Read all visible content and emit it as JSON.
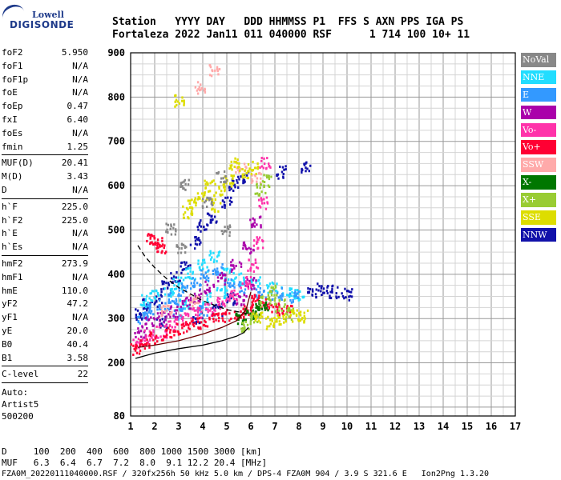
{
  "logo": {
    "line1": "Lowell",
    "line2": "DIGISONDE"
  },
  "header": {
    "line1": "Station   YYYY DAY   DDD HHMMSS P1  FFS S AXN PPS IGA PS",
    "line2": "Fortaleza 2022 Jan11 011 040000 RSF      1 714 100 10+ 11"
  },
  "params": {
    "group1": [
      {
        "k": "foF2",
        "v": "5.950"
      },
      {
        "k": "foF1",
        "v": "N/A"
      },
      {
        "k": "foF1p",
        "v": "N/A"
      },
      {
        "k": "foE",
        "v": "N/A"
      },
      {
        "k": "foEp",
        "v": "0.47"
      },
      {
        "k": "fxI",
        "v": "6.40"
      },
      {
        "k": "foEs",
        "v": "N/A"
      },
      {
        "k": "fmin",
        "v": "1.25"
      }
    ],
    "group2": [
      {
        "k": "MUF(D)",
        "v": "20.41"
      },
      {
        "k": "M(D)",
        "v": "3.43"
      },
      {
        "k": "D",
        "v": "N/A"
      }
    ],
    "group3": [
      {
        "k": "h`F",
        "v": "225.0"
      },
      {
        "k": "h`F2",
        "v": "225.0"
      },
      {
        "k": "h`E",
        "v": "N/A"
      },
      {
        "k": "h`Es",
        "v": "N/A"
      }
    ],
    "group4": [
      {
        "k": "hmF2",
        "v": "273.9"
      },
      {
        "k": "hmF1",
        "v": "N/A"
      },
      {
        "k": "hmE",
        "v": "110.0"
      },
      {
        "k": "yF2",
        "v": "47.2"
      },
      {
        "k": "yF1",
        "v": "N/A"
      },
      {
        "k": "yE",
        "v": "20.0"
      },
      {
        "k": "B0",
        "v": "40.4"
      },
      {
        "k": "B1",
        "v": "3.58"
      }
    ],
    "group5": [
      {
        "k": "C-level",
        "v": "22"
      }
    ],
    "auto": [
      "Auto:",
      "Artist5",
      "500200"
    ]
  },
  "legend": [
    {
      "label": "NoVal",
      "color": "#888888",
      "text": "#ffffff"
    },
    {
      "label": "NNE",
      "color": "#22ddff",
      "text": "#ffffff"
    },
    {
      "label": "E",
      "color": "#3399ff",
      "text": "#ffffff"
    },
    {
      "label": "W",
      "color": "#aa00aa",
      "text": "#ffffff"
    },
    {
      "label": "Vo-",
      "color": "#ff33aa",
      "text": "#ffffff"
    },
    {
      "label": "Vo+",
      "color": "#ff0033",
      "text": "#ffffff"
    },
    {
      "label": "SSW",
      "color": "#ffaaaa",
      "text": "#ffffff"
    },
    {
      "label": "X-",
      "color": "#007700",
      "text": "#ffffff"
    },
    {
      "label": "X+",
      "color": "#99cc33",
      "text": "#ffffff"
    },
    {
      "label": "SSE",
      "color": "#dddd00",
      "text": "#ffffff"
    },
    {
      "label": "NNW",
      "color": "#1111aa",
      "text": "#ffffff"
    }
  ],
  "chart_data": {
    "type": "scatter",
    "title": "",
    "xlabel": "",
    "ylabel": "",
    "xlim": [
      1,
      17
    ],
    "ylim": [
      80,
      900
    ],
    "x_ticks": [
      1,
      2,
      3,
      4,
      5,
      6,
      7,
      8,
      9,
      10,
      11,
      12,
      13,
      14,
      15,
      16,
      17
    ],
    "y_ticks": [
      200,
      300,
      400,
      500,
      600,
      700,
      800,
      900
    ],
    "y_ticks_extra": [
      80
    ],
    "series": [
      {
        "color": "#1111aa",
        "points": [
          [
            1.4,
            310
          ],
          [
            1.7,
            330
          ],
          [
            2.1,
            340
          ],
          [
            2.5,
            370
          ],
          [
            2.9,
            395
          ],
          [
            3.3,
            415
          ],
          [
            3.7,
            470
          ],
          [
            4.0,
            510
          ],
          [
            4.4,
            530
          ],
          [
            5.0,
            560
          ],
          [
            5.3,
            600
          ],
          [
            5.7,
            620
          ],
          [
            7.3,
            630
          ],
          [
            8.3,
            640
          ],
          [
            8.6,
            360
          ],
          [
            9.0,
            365
          ],
          [
            9.5,
            360
          ],
          [
            10.0,
            355
          ],
          [
            2.3,
            290
          ],
          [
            3.8,
            300
          ],
          [
            4.6,
            320
          ],
          [
            5.2,
            345
          ]
        ]
      },
      {
        "color": "#22ddff",
        "points": [
          [
            1.6,
            340
          ],
          [
            2.0,
            350
          ],
          [
            2.6,
            360
          ],
          [
            3.0,
            380
          ],
          [
            3.5,
            400
          ],
          [
            4.0,
            420
          ],
          [
            4.5,
            440
          ],
          [
            5.0,
            400
          ],
          [
            5.5,
            390
          ],
          [
            6.2,
            380
          ],
          [
            6.9,
            370
          ],
          [
            7.5,
            360
          ],
          [
            8.0,
            355
          ],
          [
            3.2,
            330
          ],
          [
            4.2,
            345
          ],
          [
            4.8,
            360
          ]
        ]
      },
      {
        "color": "#3399ff",
        "points": [
          [
            1.5,
            300
          ],
          [
            1.9,
            320
          ],
          [
            2.4,
            330
          ],
          [
            2.8,
            345
          ],
          [
            3.2,
            365
          ],
          [
            3.7,
            380
          ],
          [
            4.1,
            395
          ],
          [
            4.6,
            410
          ],
          [
            5.1,
            380
          ],
          [
            5.7,
            370
          ],
          [
            6.4,
            360
          ],
          [
            7.1,
            355
          ],
          [
            7.8,
            350
          ],
          [
            3.0,
            310
          ],
          [
            4.0,
            320
          ]
        ]
      },
      {
        "color": "#aa00aa",
        "points": [
          [
            1.4,
            270
          ],
          [
            1.8,
            290
          ],
          [
            2.3,
            300
          ],
          [
            2.8,
            315
          ],
          [
            3.3,
            335
          ],
          [
            3.8,
            350
          ],
          [
            4.3,
            370
          ],
          [
            4.8,
            390
          ],
          [
            5.4,
            420
          ],
          [
            5.9,
            460
          ],
          [
            6.2,
            520
          ],
          [
            6.0,
            380
          ],
          [
            5.6,
            340
          ]
        ]
      },
      {
        "color": "#ff33aa",
        "points": [
          [
            1.3,
            245
          ],
          [
            1.8,
            260
          ],
          [
            2.3,
            270
          ],
          [
            2.8,
            285
          ],
          [
            3.3,
            300
          ],
          [
            3.8,
            310
          ],
          [
            4.3,
            320
          ],
          [
            4.8,
            335
          ],
          [
            5.3,
            350
          ],
          [
            5.8,
            380
          ],
          [
            6.1,
            420
          ],
          [
            6.3,
            470
          ],
          [
            6.5,
            560
          ],
          [
            6.6,
            650
          ]
        ]
      },
      {
        "color": "#ff0033",
        "points": [
          [
            1.2,
            230
          ],
          [
            1.6,
            240
          ],
          [
            2.0,
            255
          ],
          [
            2.5,
            265
          ],
          [
            3.0,
            275
          ],
          [
            3.5,
            285
          ],
          [
            4.0,
            290
          ],
          [
            4.5,
            300
          ],
          [
            5.0,
            305
          ],
          [
            5.5,
            310
          ],
          [
            5.9,
            320
          ],
          [
            6.2,
            340
          ],
          [
            6.6,
            330
          ],
          [
            7.0,
            320
          ],
          [
            7.5,
            315
          ],
          [
            1.9,
            480
          ],
          [
            2.1,
            470
          ],
          [
            2.3,
            460
          ]
        ]
      },
      {
        "color": "#ffaaaa",
        "points": [
          [
            3.9,
            820
          ],
          [
            4.5,
            860
          ],
          [
            5.6,
            640
          ],
          [
            6.2,
            620
          ],
          [
            2.5,
            320
          ],
          [
            3.6,
            340
          ]
        ]
      },
      {
        "color": "#007700",
        "points": [
          [
            5.6,
            300
          ],
          [
            6.0,
            310
          ],
          [
            6.2,
            320
          ],
          [
            6.5,
            330
          ]
        ]
      },
      {
        "color": "#99cc33",
        "points": [
          [
            5.8,
            280
          ],
          [
            6.2,
            300
          ],
          [
            6.6,
            340
          ],
          [
            6.9,
            360
          ],
          [
            7.2,
            330
          ],
          [
            7.6,
            310
          ],
          [
            6.4,
            590
          ],
          [
            6.7,
            610
          ]
        ]
      },
      {
        "color": "#dddd00",
        "points": [
          [
            3.6,
            560
          ],
          [
            4.0,
            580
          ],
          [
            4.3,
            600
          ],
          [
            4.7,
            590
          ],
          [
            5.1,
            610
          ],
          [
            5.3,
            650
          ],
          [
            5.7,
            630
          ],
          [
            6.1,
            640
          ],
          [
            3.0,
            790
          ],
          [
            6.3,
            300
          ],
          [
            6.8,
            290
          ],
          [
            7.3,
            300
          ],
          [
            7.8,
            305
          ],
          [
            8.2,
            305
          ],
          [
            3.4,
            540
          ],
          [
            4.6,
            555
          ]
        ]
      },
      {
        "color": "#888888",
        "points": [
          [
            3.3,
            600
          ],
          [
            4.2,
            560
          ],
          [
            5.0,
            500
          ],
          [
            4.8,
            620
          ],
          [
            2.7,
            500
          ],
          [
            3.1,
            460
          ]
        ]
      }
    ],
    "curves": [
      {
        "name": "solid",
        "color": "#000000",
        "dash": false,
        "points": [
          [
            1.2,
            210
          ],
          [
            2.0,
            222
          ],
          [
            3.0,
            232
          ],
          [
            4.0,
            240
          ],
          [
            4.8,
            250
          ],
          [
            5.4,
            260
          ],
          [
            5.7,
            268
          ],
          [
            5.9,
            280
          ]
        ]
      },
      {
        "name": "dashed",
        "color": "#000000",
        "dash": true,
        "points": [
          [
            1.3,
            465
          ],
          [
            1.6,
            440
          ],
          [
            2.0,
            415
          ],
          [
            2.5,
            390
          ],
          [
            3.0,
            370
          ],
          [
            3.5,
            355
          ],
          [
            4.0,
            340
          ],
          [
            4.5,
            330
          ],
          [
            5.0,
            320
          ],
          [
            5.5,
            315
          ],
          [
            6.0,
            310
          ]
        ]
      },
      {
        "name": "dark-red",
        "color": "#660000",
        "dash": false,
        "points": [
          [
            1.3,
            235
          ],
          [
            2.0,
            240
          ],
          [
            3.0,
            250
          ],
          [
            4.0,
            265
          ],
          [
            4.8,
            280
          ],
          [
            5.4,
            295
          ],
          [
            5.8,
            320
          ],
          [
            6.0,
            360
          ]
        ]
      }
    ]
  },
  "bottom": {
    "d_row": "D     100  200  400  600  800 1000 1500 3000 [km]",
    "muf_row": "MUF   6.3  6.4  6.7  7.2  8.0  9.1 12.2 20.4 [MHz]",
    "footer": "FZA0M_20220111040000.RSF / 320fx256h 50 kHz 5.0 km / DPS-4 FZA0M 904 / 3.9 S 321.6 E   Ion2Png 1.3.20"
  }
}
